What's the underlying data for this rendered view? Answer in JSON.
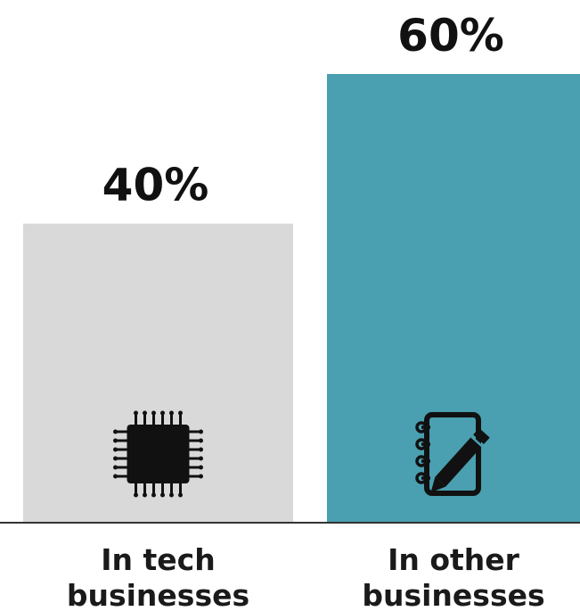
{
  "chart_data": {
    "type": "bar",
    "categories": [
      [
        "In tech",
        "businesses"
      ],
      [
        "In other",
        "businesses"
      ]
    ],
    "values": [
      40,
      60
    ],
    "value_labels": [
      "40%",
      "60%"
    ],
    "ylim": [
      0,
      60
    ],
    "colors": [
      "#d9d9d9",
      "#4a9fb0"
    ],
    "icons": [
      "chip-icon",
      "notebook-icon"
    ],
    "title": "",
    "xlabel": "",
    "ylabel": "",
    "grid": false,
    "legend": "none"
  }
}
